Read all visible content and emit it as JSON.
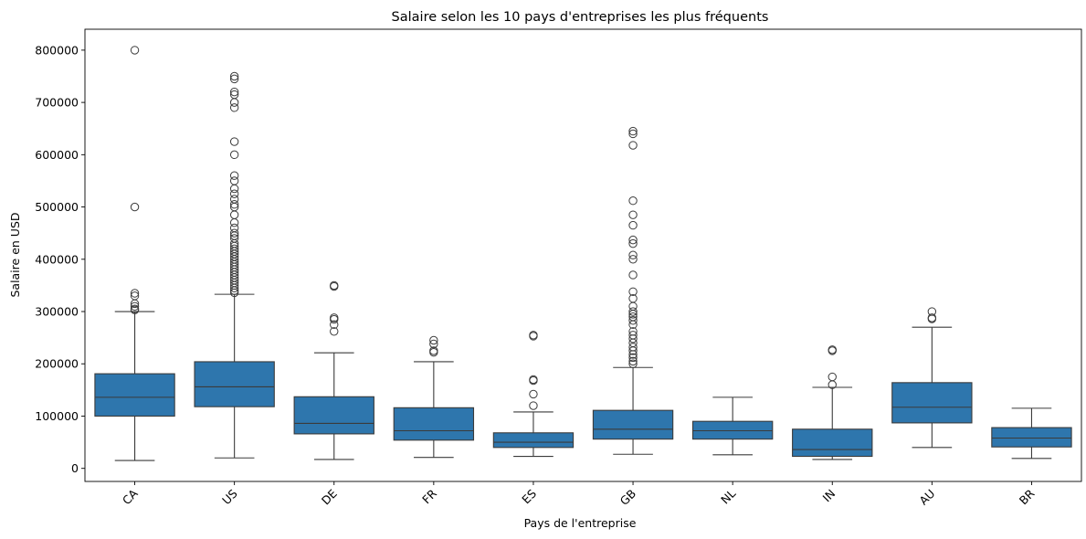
{
  "chart_data": {
    "type": "box",
    "title": "Salaire selon les 10 pays d'entreprises les plus fréquents",
    "xlabel": "Pays de l'entreprise",
    "ylabel": "Salaire en USD",
    "ylim": [
      -25000,
      840000
    ],
    "yticks": [
      0,
      100000,
      200000,
      300000,
      400000,
      500000,
      600000,
      700000,
      800000
    ],
    "ytick_labels": [
      "0",
      "100000",
      "200000",
      "300000",
      "400000",
      "500000",
      "600000",
      "700000",
      "800000"
    ],
    "grid": false,
    "color": "#2e76ad",
    "categories": [
      "CA",
      "US",
      "DE",
      "FR",
      "ES",
      "GB",
      "NL",
      "IN",
      "AU",
      "BR"
    ],
    "boxes": [
      {
        "name": "CA",
        "whisker_low": 15000,
        "q1": 100000,
        "median": 136000,
        "q3": 181000,
        "whisker_high": 300000,
        "outliers": [
          800000,
          500000,
          335000,
          330000,
          315000,
          310000,
          305000,
          303000
        ]
      },
      {
        "name": "US",
        "whisker_low": 20000,
        "q1": 118000,
        "median": 156000,
        "q3": 204000,
        "whisker_high": 333000,
        "outliers": [
          750000,
          745000,
          720000,
          715000,
          700000,
          690000,
          625000,
          600000,
          560000,
          550000,
          535000,
          525000,
          515000,
          505000,
          500000,
          485000,
          470000,
          460000,
          450000,
          445000,
          440000,
          430000,
          425000,
          420000,
          415000,
          410000,
          405000,
          400000,
          395000,
          390000,
          385000,
          380000,
          375000,
          370000,
          365000,
          360000,
          355000,
          350000,
          345000,
          340000,
          336000
        ]
      },
      {
        "name": "DE",
        "whisker_low": 17000,
        "q1": 66000,
        "median": 86000,
        "q3": 137000,
        "whisker_high": 221000,
        "outliers": [
          350000,
          348000,
          288000,
          285000,
          275000,
          262000
        ]
      },
      {
        "name": "FR",
        "whisker_low": 21000,
        "q1": 54000,
        "median": 72000,
        "q3": 116000,
        "whisker_high": 204000,
        "outliers": [
          245000,
          238000,
          225000,
          222000
        ]
      },
      {
        "name": "ES",
        "whisker_low": 23000,
        "q1": 40000,
        "median": 50000,
        "q3": 68000,
        "whisker_high": 108000,
        "outliers": [
          255000,
          253000,
          170000,
          168000,
          142000,
          120000
        ]
      },
      {
        "name": "GB",
        "whisker_low": 27000,
        "q1": 56000,
        "median": 75000,
        "q3": 111000,
        "whisker_high": 193000,
        "outliers": [
          645000,
          640000,
          618000,
          512000,
          485000,
          465000,
          437000,
          430000,
          408000,
          400000,
          370000,
          338000,
          325000,
          310000,
          300000,
          295000,
          290000,
          283000,
          275000,
          262000,
          255000,
          248000,
          240000,
          232000,
          225000,
          218000,
          212000,
          205000,
          200000
        ]
      },
      {
        "name": "NL",
        "whisker_low": 26000,
        "q1": 56000,
        "median": 72000,
        "q3": 90000,
        "whisker_high": 136000,
        "outliers": []
      },
      {
        "name": "IN",
        "whisker_low": 17000,
        "q1": 23000,
        "median": 36000,
        "q3": 75000,
        "whisker_high": 155000,
        "outliers": [
          227000,
          225000,
          175000,
          160000
        ]
      },
      {
        "name": "AU",
        "whisker_low": 40000,
        "q1": 87000,
        "median": 117000,
        "q3": 164000,
        "whisker_high": 270000,
        "outliers": [
          300000,
          288000,
          286000
        ]
      },
      {
        "name": "BR",
        "whisker_low": 19000,
        "q1": 41000,
        "median": 58000,
        "q3": 78000,
        "whisker_high": 115000,
        "outliers": []
      }
    ]
  }
}
